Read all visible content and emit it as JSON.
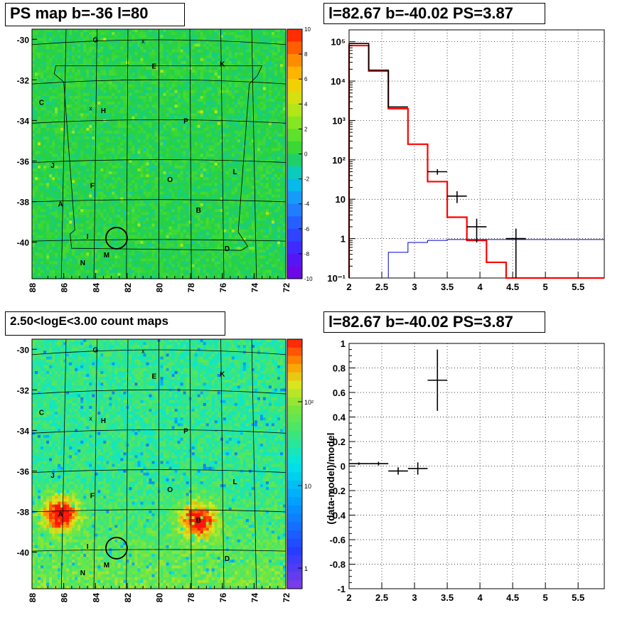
{
  "panels": {
    "ps_map_title": "PS map b=-36 l=80",
    "spectrum_title": "l=82.67 b=-40.02 PS=3.87",
    "count_map_title": "2.50<logE<3.00 count maps",
    "residual_title": "l=82.67 b=-40.02 PS=3.87"
  },
  "chart_data": [
    {
      "type": "heatmap",
      "id": "ps_map",
      "title": "PS map b=-36 l=80",
      "x_ticks": [
        "88",
        "86",
        "84",
        "82",
        "80",
        "78",
        "76",
        "74",
        "72"
      ],
      "y_ticks": [
        "-30",
        "-32",
        "-34",
        "-36",
        "-38",
        "-40"
      ],
      "xlim": [
        88,
        72
      ],
      "ylim": [
        -41.8,
        -29.5
      ],
      "colorbar_ticks": [
        "10",
        "8",
        "6",
        "4",
        "2",
        "0",
        "-2",
        "-4",
        "-6",
        "-8",
        "-10"
      ],
      "colorbar_range": [
        -10,
        10
      ],
      "dominant_value": 0,
      "source_labels": [
        {
          "label": "G",
          "l": 84.0,
          "b": -30.0
        },
        {
          "label": "E",
          "l": 80.3,
          "b": -31.3
        },
        {
          "label": "K",
          "l": 76.0,
          "b": -31.2
        },
        {
          "label": "C",
          "l": 87.4,
          "b": -33.1
        },
        {
          "label": "H",
          "l": 83.5,
          "b": -33.5
        },
        {
          "label": "P",
          "l": 78.3,
          "b": -34.0
        },
        {
          "label": "J",
          "l": 86.7,
          "b": -36.2
        },
        {
          "label": "L",
          "l": 75.2,
          "b": -36.5
        },
        {
          "label": "O",
          "l": 79.3,
          "b": -36.9
        },
        {
          "label": "F",
          "l": 84.2,
          "b": -37.2
        },
        {
          "label": "A",
          "l": 86.2,
          "b": -38.1
        },
        {
          "label": "B",
          "l": 77.5,
          "b": -38.4
        },
        {
          "label": "I",
          "l": 84.5,
          "b": -39.7
        },
        {
          "label": "D",
          "l": 75.7,
          "b": -40.3
        },
        {
          "label": "M",
          "l": 83.3,
          "b": -40.6
        },
        {
          "label": "N",
          "l": 84.8,
          "b": -41.0
        }
      ],
      "markers": [
        {
          "symbol": "x",
          "l": 81.0,
          "b": -30.1
        },
        {
          "symbol": "x",
          "l": 84.3,
          "b": -33.4
        }
      ],
      "circle": {
        "l": 82.67,
        "b": -39.8
      }
    },
    {
      "type": "line",
      "id": "spectrum",
      "title": "l=82.67 b=-40.02 PS=3.87",
      "x_ticks": [
        "2",
        "2.5",
        "3",
        "3.5",
        "4",
        "4.5",
        "5",
        "5.5"
      ],
      "y_ticks": [
        "10^-1",
        "1",
        "10",
        "10^2",
        "10^3",
        "10^4",
        "10^5"
      ],
      "xlim": [
        2.0,
        5.9
      ],
      "ylim": [
        0.1,
        200000
      ],
      "yscale": "log",
      "grid": true,
      "series": [
        {
          "color": "#ff0000",
          "style": "step",
          "edges": [
            2.0,
            2.3,
            2.6,
            2.9,
            3.2,
            3.5,
            3.8,
            4.1,
            4.4,
            4.7,
            5.0,
            5.3,
            5.6,
            5.9
          ],
          "values": [
            80000,
            18000,
            2000,
            250,
            28,
            3.5,
            0.9,
            0.25,
            0.1,
            0.1,
            0.1,
            0.1,
            0.1
          ]
        },
        {
          "color": "#000000",
          "style": "step",
          "edges": [
            2.0,
            2.3,
            2.6,
            2.9
          ],
          "values": [
            90000,
            19000,
            2200
          ]
        },
        {
          "color": "#0000cc",
          "style": "step",
          "edges": [
            2.6,
            2.9,
            3.2,
            3.5,
            3.8,
            4.1,
            4.4,
            4.7,
            5.0,
            5.3,
            5.6,
            5.9
          ],
          "values": [
            0.45,
            0.8,
            0.9,
            0.95,
            0.95,
            0.95,
            0.95,
            0.95,
            0.95,
            0.95,
            0.95,
            0.95
          ]
        },
        {
          "color": "#000000",
          "style": "errorbar",
          "points": [
            {
              "x": 3.35,
              "y": 50,
              "xerr": 0.15,
              "ylo": 42,
              "yhi": 58
            },
            {
              "x": 3.65,
              "y": 12,
              "xerr": 0.15,
              "ylo": 8,
              "yhi": 16
            },
            {
              "x": 3.95,
              "y": 2,
              "xerr": 0.15,
              "ylo": 0.8,
              "yhi": 3.2
            },
            {
              "x": 4.55,
              "y": 1,
              "xerr": 0.15,
              "ylo": 0.1,
              "yhi": 1.8
            }
          ]
        }
      ]
    },
    {
      "type": "heatmap",
      "id": "count_map",
      "title": "2.50<logE<3.00 count maps",
      "x_ticks": [
        "88",
        "86",
        "84",
        "82",
        "80",
        "78",
        "76",
        "74",
        "72"
      ],
      "y_ticks": [
        "-30",
        "-32",
        "-34",
        "-36",
        "-38",
        "-40"
      ],
      "xlim": [
        88,
        72
      ],
      "ylim": [
        -41.8,
        -29.5
      ],
      "zscale": "log",
      "colorbar_ticks": [
        "10^2",
        "10",
        "1"
      ],
      "hotspots": [
        {
          "label": "A",
          "l": 86.2,
          "b": -38.1
        },
        {
          "label": "B",
          "l": 77.5,
          "b": -38.4
        }
      ],
      "source_labels": [
        {
          "label": "G",
          "l": 84.0,
          "b": -30.0
        },
        {
          "label": "E",
          "l": 80.3,
          "b": -31.3
        },
        {
          "label": "K",
          "l": 76.0,
          "b": -31.2
        },
        {
          "label": "C",
          "l": 87.4,
          "b": -33.1
        },
        {
          "label": "H",
          "l": 83.5,
          "b": -33.5
        },
        {
          "label": "P",
          "l": 78.3,
          "b": -34.0
        },
        {
          "label": "J",
          "l": 86.7,
          "b": -36.2
        },
        {
          "label": "L",
          "l": 75.2,
          "b": -36.5
        },
        {
          "label": "O",
          "l": 79.3,
          "b": -36.9
        },
        {
          "label": "F",
          "l": 84.2,
          "b": -37.2
        },
        {
          "label": "A",
          "l": 86.2,
          "b": -38.1
        },
        {
          "label": "B",
          "l": 77.5,
          "b": -38.4
        },
        {
          "label": "I",
          "l": 84.5,
          "b": -39.7
        },
        {
          "label": "D",
          "l": 75.7,
          "b": -40.3
        },
        {
          "label": "M",
          "l": 83.3,
          "b": -40.6
        },
        {
          "label": "N",
          "l": 84.8,
          "b": -41.0
        }
      ],
      "markers": [
        {
          "symbol": "x",
          "l": 81.0,
          "b": -30.1
        },
        {
          "symbol": "x",
          "l": 84.3,
          "b": -33.4
        }
      ],
      "circle": {
        "l": 82.67,
        "b": -39.8
      }
    },
    {
      "type": "scatter",
      "id": "residual",
      "title": "l=82.67 b=-40.02 PS=3.87",
      "ylabel": "(data-model)/model",
      "x_ticks": [
        "2",
        "2.5",
        "3",
        "3.5",
        "4",
        "4.5",
        "5",
        "5.5"
      ],
      "y_ticks": [
        "1",
        "0.8",
        "0.6",
        "0.4",
        "0.2",
        "0",
        "-0.2",
        "-0.4",
        "-0.6",
        "-0.8",
        "-1"
      ],
      "xlim": [
        2.0,
        5.9
      ],
      "ylim": [
        -1,
        1
      ],
      "grid": true,
      "points": [
        {
          "x": 2.15,
          "y": 0.02,
          "xerr": 0.15,
          "yerr": 0.01
        },
        {
          "x": 2.45,
          "y": 0.02,
          "xerr": 0.15,
          "yerr": 0.015
        },
        {
          "x": 2.75,
          "y": -0.04,
          "xerr": 0.15,
          "yerr": 0.03
        },
        {
          "x": 3.05,
          "y": -0.02,
          "xerr": 0.15,
          "yerr": 0.05
        },
        {
          "x": 3.35,
          "y": 0.7,
          "xerr": 0.15,
          "yerr": 0.25
        }
      ]
    }
  ]
}
